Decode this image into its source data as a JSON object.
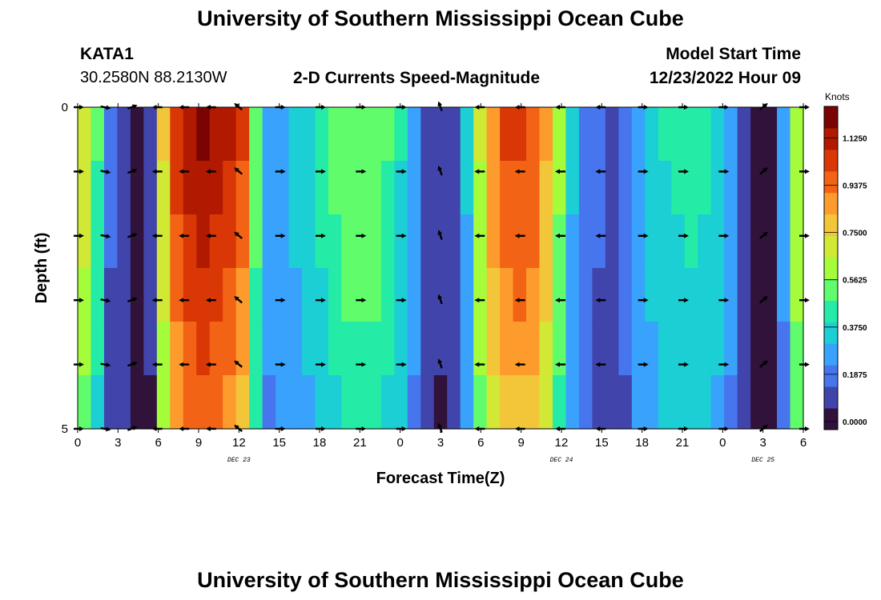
{
  "header": {
    "title": "University of Southern Mississippi Ocean Cube",
    "station_id": "KATA1",
    "coordinates": "30.2580N  88.2130W",
    "subtitle": "2-D Currents Speed-Magnitude",
    "model_start_label": "Model Start Time",
    "model_start_value": "12/23/2022 Hour 09"
  },
  "footer_title": "University of Southern Mississippi Ocean Cube",
  "chart_data": {
    "type": "heatmap",
    "title": "2-D Currents Speed-Magnitude",
    "xlabel": "Forecast Time(Z)",
    "ylabel": "Depth (ft)",
    "x_range_hours": [
      0,
      54
    ],
    "y_range": [
      0,
      5
    ],
    "y_ticks": [
      "0",
      "5"
    ],
    "x_tick_labels": [
      "0",
      "3",
      "6",
      "9",
      "12",
      "15",
      "18",
      "21",
      "0",
      "3",
      "6",
      "9",
      "12",
      "15",
      "18",
      "21",
      "0",
      "3",
      "6"
    ],
    "day_labels": [
      {
        "label": "DEC 23",
        "hour": 12
      },
      {
        "label": "DEC 24",
        "hour": 36
      },
      {
        "label": "DEC 25",
        "hour": 51
      }
    ],
    "colorbar": {
      "unit": "Knots",
      "min": 0.0,
      "max": 1.25,
      "tick_labels": [
        "0.0000",
        "0.1875",
        "0.3750",
        "0.5625",
        "0.7500",
        "0.9375",
        "1.1250"
      ],
      "tick_values": [
        0.0,
        0.1875,
        0.375,
        0.5625,
        0.75,
        0.9375,
        1.125
      ],
      "colors": [
        "#30123b",
        "#4145ab",
        "#4675ed",
        "#39a2fc",
        "#1bcfd4",
        "#24eca6",
        "#61fc6c",
        "#a4fc3b",
        "#d1e834",
        "#f3c63a",
        "#fe9b2d",
        "#f36315",
        "#d93806",
        "#b11901",
        "#7a0403"
      ]
    },
    "speed_by_hour_knots": [
      0.72,
      0.5,
      0.18,
      0.12,
      0.05,
      0.1,
      0.75,
      1.05,
      1.15,
      1.18,
      1.15,
      1.1,
      1.0,
      0.55,
      0.3,
      0.32,
      0.36,
      0.4,
      0.46,
      0.52,
      0.57,
      0.58,
      0.56,
      0.5,
      0.42,
      0.3,
      0.15,
      0.1,
      0.12,
      0.35,
      0.68,
      0.9,
      1.0,
      1.02,
      0.98,
      0.85,
      0.62,
      0.35,
      0.22,
      0.18,
      0.15,
      0.2,
      0.32,
      0.38,
      0.42,
      0.44,
      0.45,
      0.44,
      0.4,
      0.3,
      0.16,
      0.08,
      0.06,
      0.28,
      0.66
    ],
    "depth_speed_factor": [
      1.0,
      0.97,
      0.94,
      0.9,
      0.86,
      0.8
    ],
    "vector_hours": [
      0,
      2,
      4,
      6,
      8,
      10,
      12,
      15,
      18,
      21,
      24,
      27,
      30,
      33,
      36,
      39,
      42,
      45,
      48,
      51,
      54
    ],
    "vector_depths_ft": [
      0,
      1,
      2,
      3,
      4,
      5
    ],
    "vector_direction_deg_by_column": [
      0,
      10,
      -20,
      180,
      180,
      180,
      220,
      0,
      0,
      0,
      0,
      250,
      180,
      180,
      180,
      180,
      0,
      0,
      0,
      -40,
      0
    ]
  }
}
